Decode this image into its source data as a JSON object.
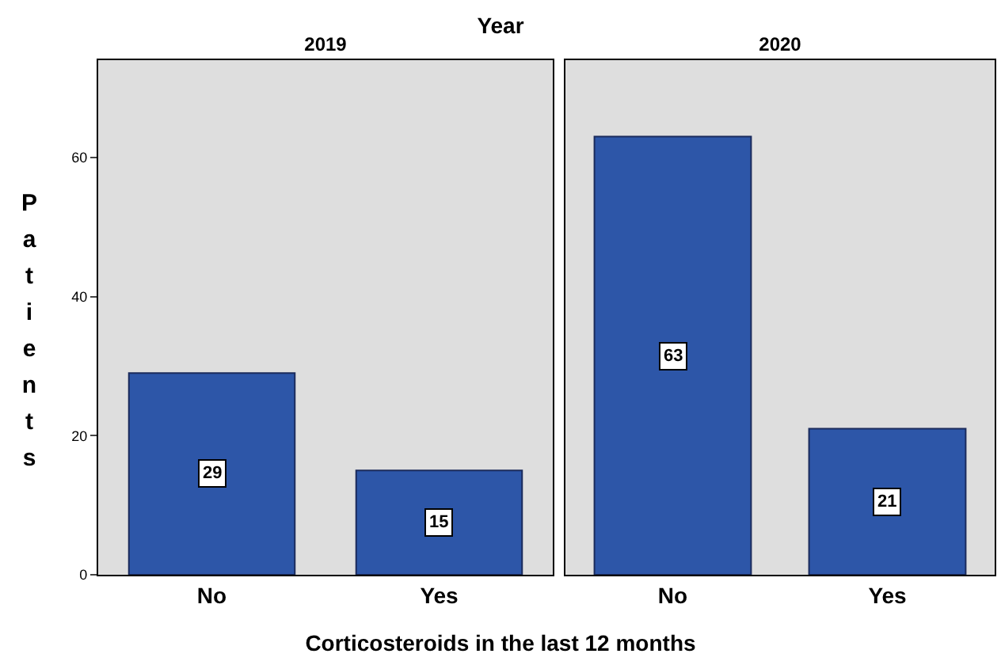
{
  "chart_data": [
    {
      "type": "bar",
      "title": "2019",
      "xlabel": "Corticosteroids in the last 12 months",
      "ylabel": "Patients",
      "annotations": [
        "Year"
      ],
      "categories": [
        "No",
        "Yes"
      ],
      "values": [
        29,
        15
      ],
      "color": "#2d56a8",
      "ylim": [
        0,
        74
      ],
      "yticks": [
        0,
        20,
        40,
        60
      ],
      "data_labels": true
    },
    {
      "type": "bar",
      "title": "2020",
      "categories": [
        "No",
        "Yes"
      ],
      "values": [
        63,
        21
      ],
      "color": "#2d56a8",
      "ylim": [
        0,
        74
      ],
      "data_labels": true,
      "tick_labels": "x"
    }
  ]
}
